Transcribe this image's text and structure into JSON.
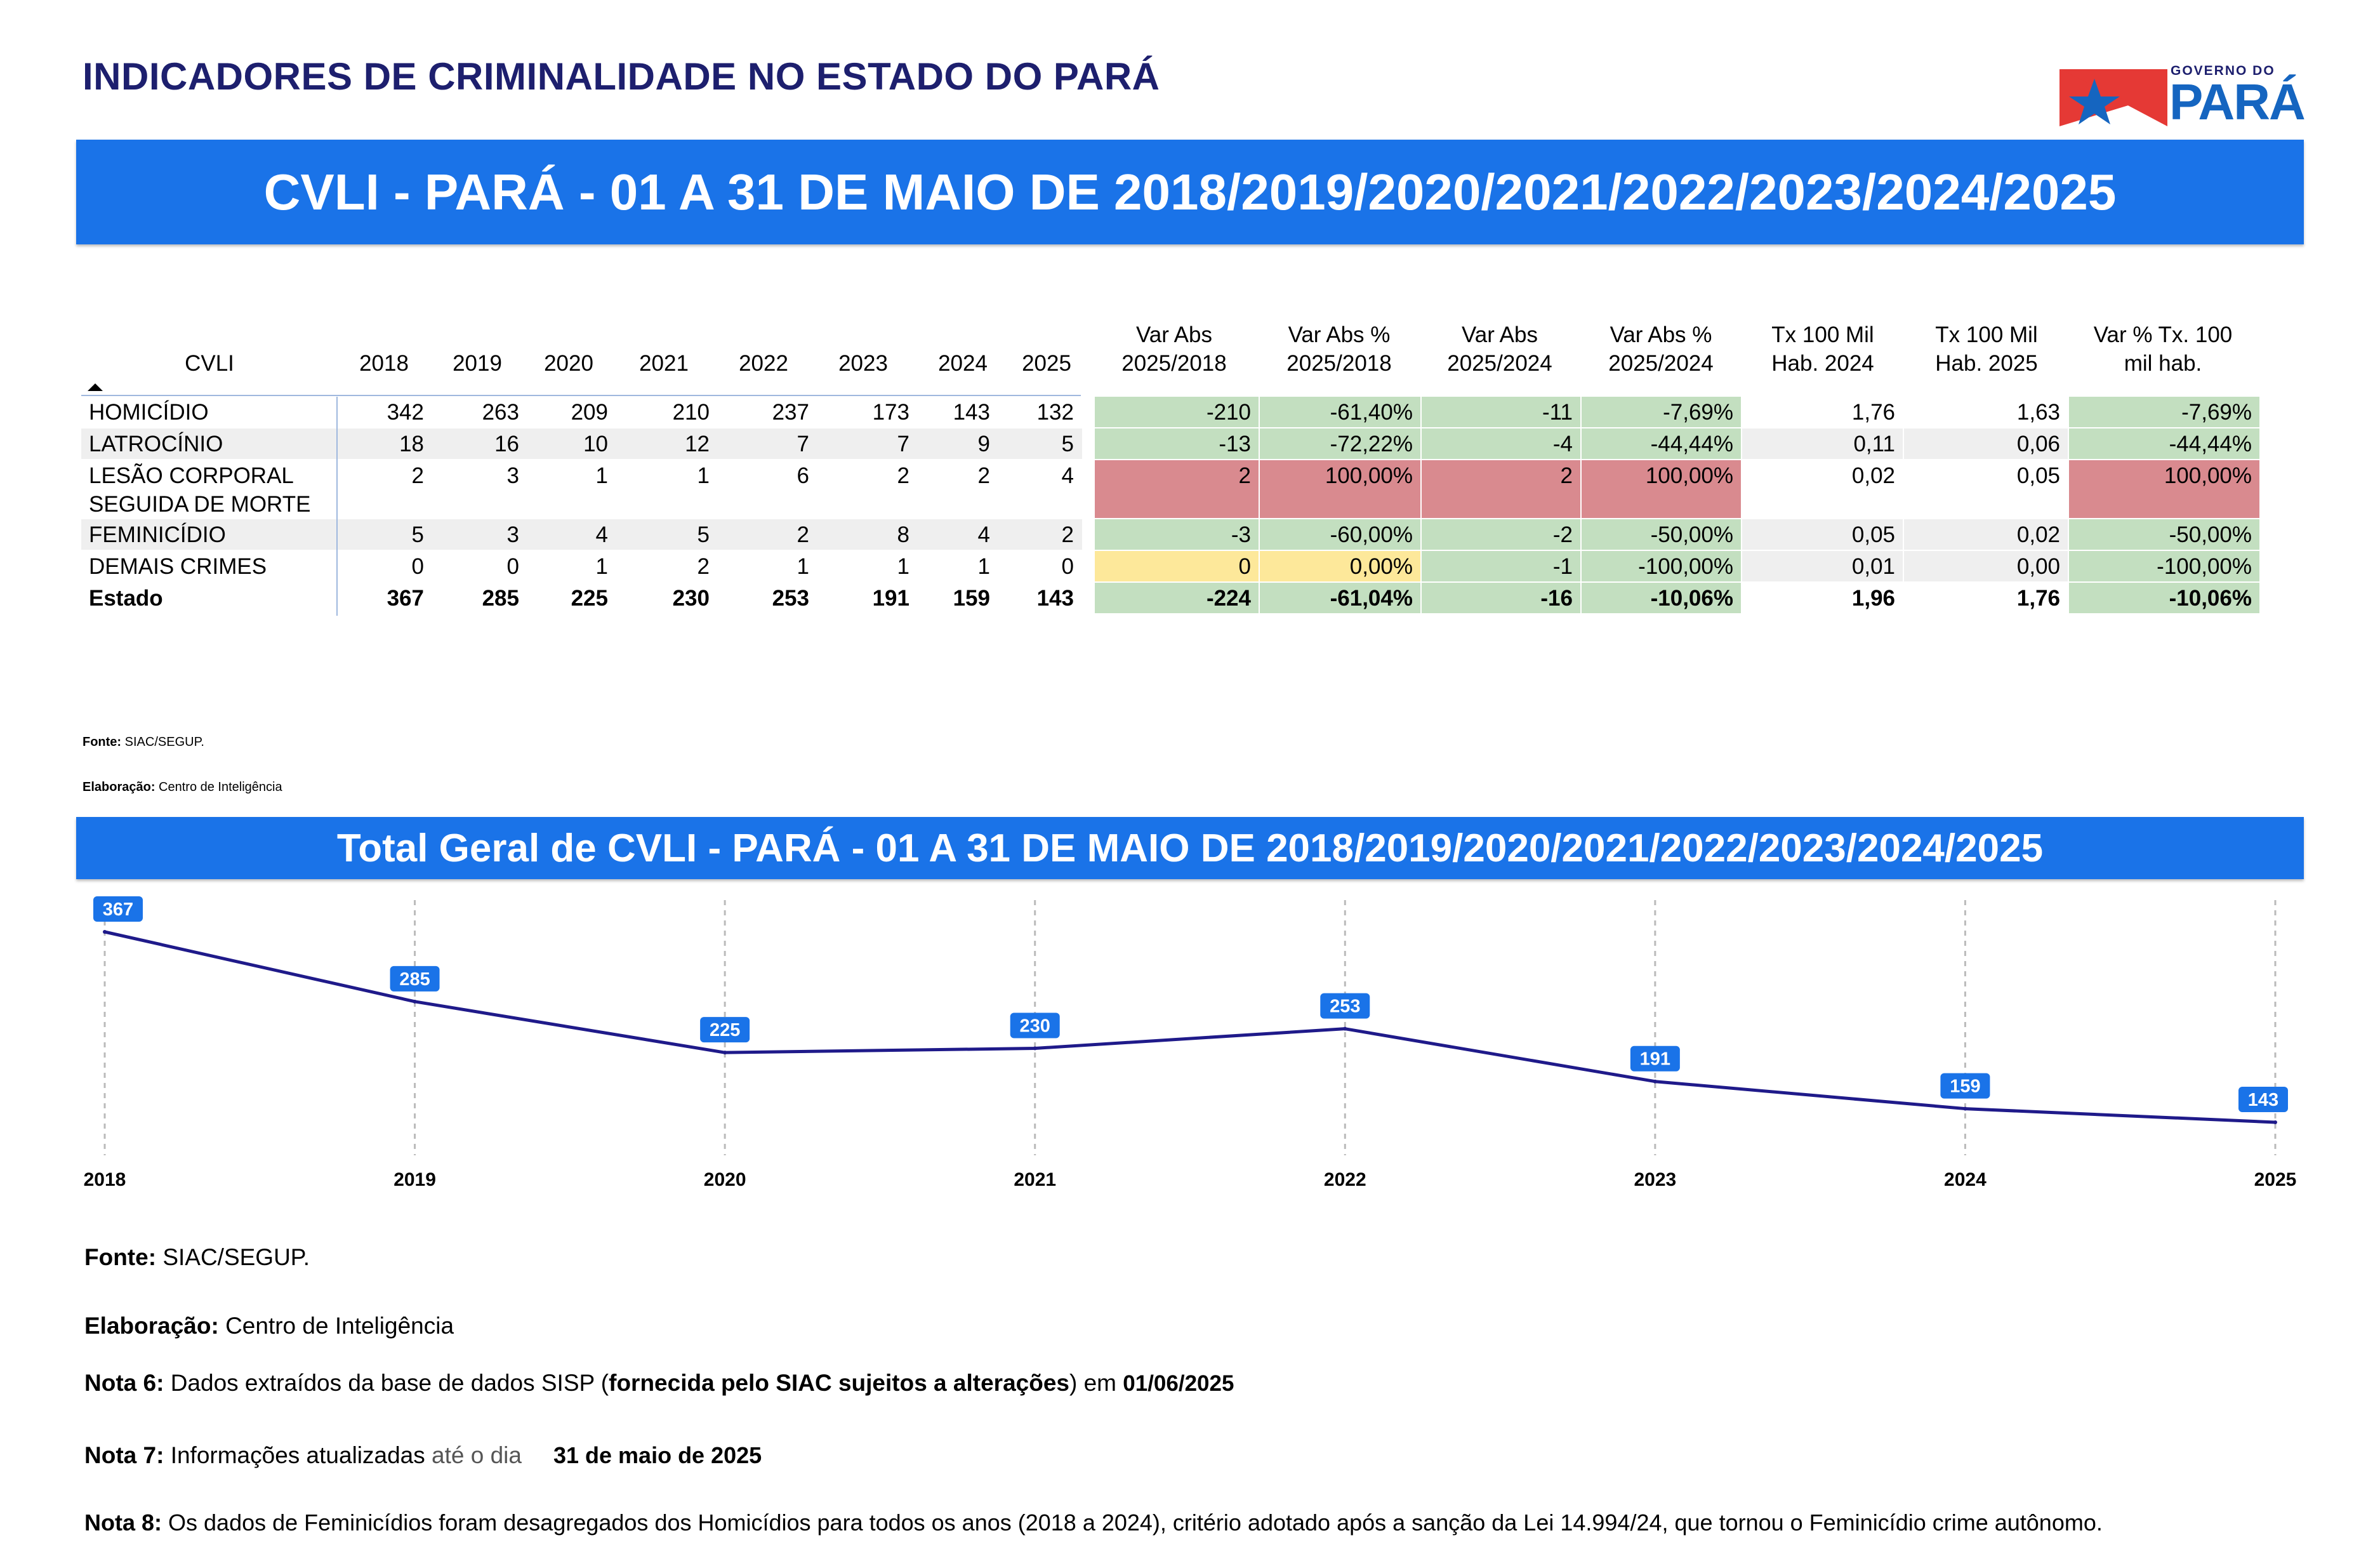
{
  "header": {
    "title": "INDICADORES DE CRIMINALIDADE NO ESTADO DO PARÁ",
    "logo_small": "GOVERNO DO",
    "logo_big": "PARÁ"
  },
  "banner1": "CVLI - PARÁ - 01 A 31 DE MAIO DE 2018/2019/2020/2021/2022/2023/2024/2025",
  "table": {
    "headers": {
      "cvli": "CVLI",
      "years": [
        "2018",
        "2019",
        "2020",
        "2021",
        "2022",
        "2023",
        "2024",
        "2025"
      ],
      "var_abs_2018": [
        "Var Abs",
        "2025/2018"
      ],
      "var_pct_2018": [
        "Var Abs %",
        "2025/2018"
      ],
      "var_abs_2024": [
        "Var Abs",
        "2025/2024"
      ],
      "var_pct_2024": [
        "Var Abs %",
        "2025/2024"
      ],
      "tx_2024": [
        "Tx 100 Mil",
        "Hab. 2024"
      ],
      "tx_2025": [
        "Tx 100 Mil",
        "Hab. 2025"
      ],
      "var_tx": [
        "Var % Tx. 100",
        "mil hab."
      ]
    },
    "rows": [
      {
        "name": "HOMICÍDIO",
        "name2": "",
        "values": [
          "342",
          "263",
          "209",
          "210",
          "237",
          "173",
          "143",
          "132"
        ],
        "var_abs_2018": "-210",
        "var_pct_2018": "-61,40%",
        "var_abs_2024": "-11",
        "var_pct_2024": "-7,69%",
        "tx_2024": "1,76",
        "tx_2025": "1,63",
        "var_tx": "-7,69%"
      },
      {
        "name": "LATROCÍNIO",
        "name2": "",
        "values": [
          "18",
          "16",
          "10",
          "12",
          "7",
          "7",
          "9",
          "5"
        ],
        "var_abs_2018": "-13",
        "var_pct_2018": "-72,22%",
        "var_abs_2024": "-4",
        "var_pct_2024": "-44,44%",
        "tx_2024": "0,11",
        "tx_2025": "0,06",
        "var_tx": "-44,44%"
      },
      {
        "name": "LESÃO CORPORAL",
        "name2": "SEGUIDA DE MORTE",
        "values": [
          "2",
          "3",
          "1",
          "1",
          "6",
          "2",
          "2",
          "4"
        ],
        "var_abs_2018": "2",
        "var_pct_2018": "100,00%",
        "var_abs_2024": "2",
        "var_pct_2024": "100,00%",
        "tx_2024": "0,02",
        "tx_2025": "0,05",
        "var_tx": "100,00%"
      },
      {
        "name": "FEMINICÍDIO",
        "name2": "",
        "values": [
          "5",
          "3",
          "4",
          "5",
          "2",
          "8",
          "4",
          "2"
        ],
        "var_abs_2018": "-3",
        "var_pct_2018": "-60,00%",
        "var_abs_2024": "-2",
        "var_pct_2024": "-50,00%",
        "tx_2024": "0,05",
        "tx_2025": "0,02",
        "var_tx": "-50,00%"
      },
      {
        "name": "DEMAIS CRIMES",
        "name2": "",
        "values": [
          "0",
          "0",
          "1",
          "2",
          "1",
          "1",
          "1",
          "0"
        ],
        "var_abs_2018": "0",
        "var_pct_2018": "0,00%",
        "var_abs_2024": "-1",
        "var_pct_2024": "-100,00%",
        "tx_2024": "0,01",
        "tx_2025": "0,00",
        "var_tx": "-100,00%"
      },
      {
        "name": "Estado",
        "name2": "",
        "values": [
          "367",
          "285",
          "225",
          "230",
          "253",
          "191",
          "159",
          "143"
        ],
        "var_abs_2018": "-224",
        "var_pct_2018": "-61,04%",
        "var_abs_2024": "-16",
        "var_pct_2024": "-10,06%",
        "tx_2024": "1,96",
        "tx_2025": "1,76",
        "var_tx": "-10,06%"
      }
    ]
  },
  "small_source": {
    "fonte_label": "Fonte:",
    "fonte_value": "SIAC/SEGUP.",
    "elab_label": "Elaboração:",
    "elab_value": "Centro de Inteligência"
  },
  "banner2": "Total Geral de CVLI - PARÁ - 01 A 31 DE MAIO DE 2018/2019/2020/2021/2022/2023/2024/2025",
  "chart_data": {
    "type": "line",
    "title": "Total Geral de CVLI - PARÁ - 01 A 31 DE MAIO DE 2018/2019/2020/2021/2022/2023/2024/2025",
    "categories": [
      "2018",
      "2019",
      "2020",
      "2021",
      "2022",
      "2023",
      "2024",
      "2025"
    ],
    "series": [
      {
        "values": [
          367,
          285,
          225,
          230,
          253,
          191,
          159,
          143
        ]
      }
    ],
    "line_color": "#1f1a8a",
    "label_color": "#1a73e8",
    "grid": "vertical dashed",
    "xlabel": "",
    "ylabel": ""
  },
  "footer": {
    "fonte_label": "Fonte:",
    "fonte_value": "SIAC/SEGUP.",
    "elab_label": "Elaboração:",
    "elab_value": "Centro de Inteligência",
    "nota6_label": "Nota 6:",
    "nota6_a": "Dados extraídos da base de dados SISP (",
    "nota6_b": "fornecida pelo SIAC sujeitos a alterações",
    "nota6_c": ") em",
    "nota6_date": "01/06/2025",
    "nota7_label": "Nota 7:",
    "nota7_a": "Informações atualizadas",
    "nota7_b": "até o dia",
    "nota7_date": "31 de maio de 2025",
    "nota8_label": "Nota 8:",
    "nota8_text": "Os dados de Feminicídios foram desagregados dos Homicídios para todos os anos (2018 a 2024), critério adotado após a sanção da Lei 14.994/24, que tornou o Feminicídio crime autônomo."
  }
}
